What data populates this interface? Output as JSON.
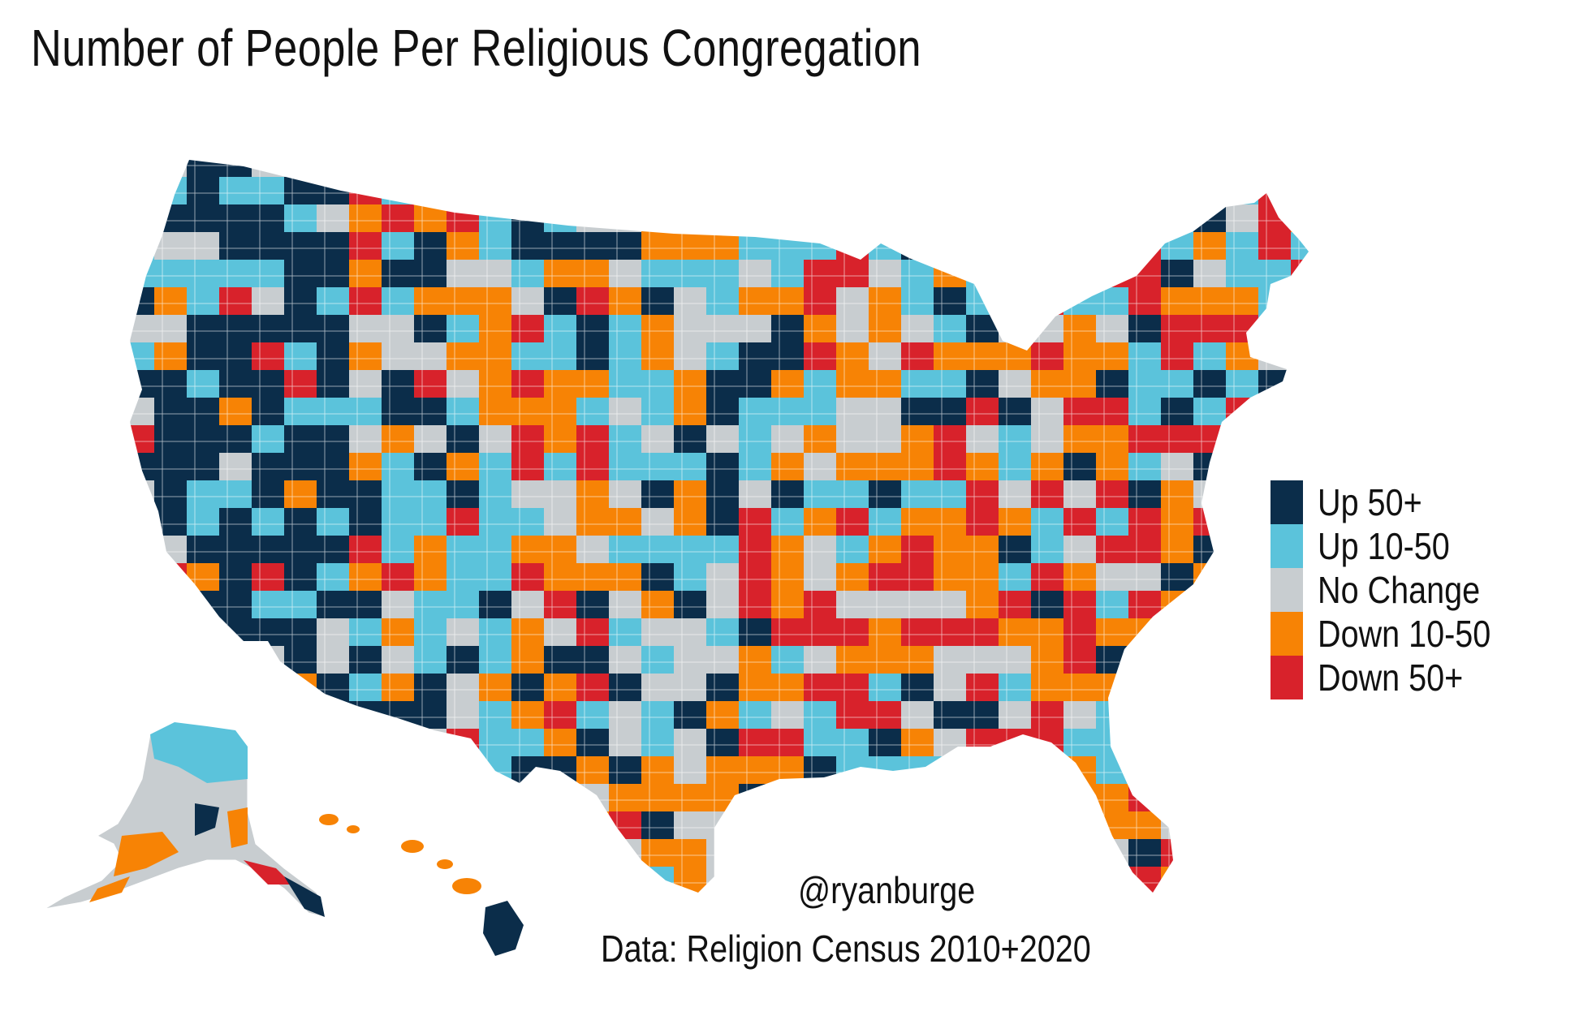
{
  "title": "Number of People Per Religious Congregation",
  "legend": [
    {
      "label": "Up 50+",
      "color": "#0b2d4a"
    },
    {
      "label": "Up 10-50",
      "color": "#5bc3db"
    },
    {
      "label": "No Change",
      "color": "#c8cdd0"
    },
    {
      "label": "Down 10-50",
      "color": "#f78305"
    },
    {
      "label": "Down 50+",
      "color": "#d8222b"
    }
  ],
  "credit": "@ryanburge",
  "source": "Data: Religion Census 2010+2020",
  "regions": [
    "contiguous-us",
    "alaska",
    "hawaii"
  ]
}
